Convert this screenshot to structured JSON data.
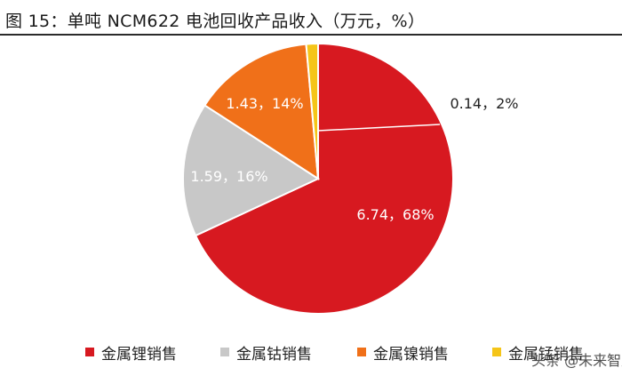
{
  "title": "图 15：单吨 NCM622 电池回收产品收入（万元，%）",
  "chart_data": {
    "type": "pie",
    "title": "图 15：单吨 NCM622 电池回收产品收入（万元，%）",
    "slices": [
      {
        "name": "金属锂销售",
        "value": 6.74,
        "percent": 68,
        "label": "6.74，68%",
        "color": "#d71920"
      },
      {
        "name": "金属钴销售",
        "value": 1.59,
        "percent": 16,
        "label": "1.59，16%",
        "color": "#c8c8c8"
      },
      {
        "name": "金属镍销售",
        "value": 1.43,
        "percent": 14,
        "label": "1.43，14%",
        "color": "#f07019"
      },
      {
        "name": "金属锰销售",
        "value": 0.14,
        "percent": 2,
        "label": "0.14，2%",
        "color": "#f5c518"
      }
    ],
    "legend_position": "bottom"
  },
  "watermark": "头条 @未来智库"
}
